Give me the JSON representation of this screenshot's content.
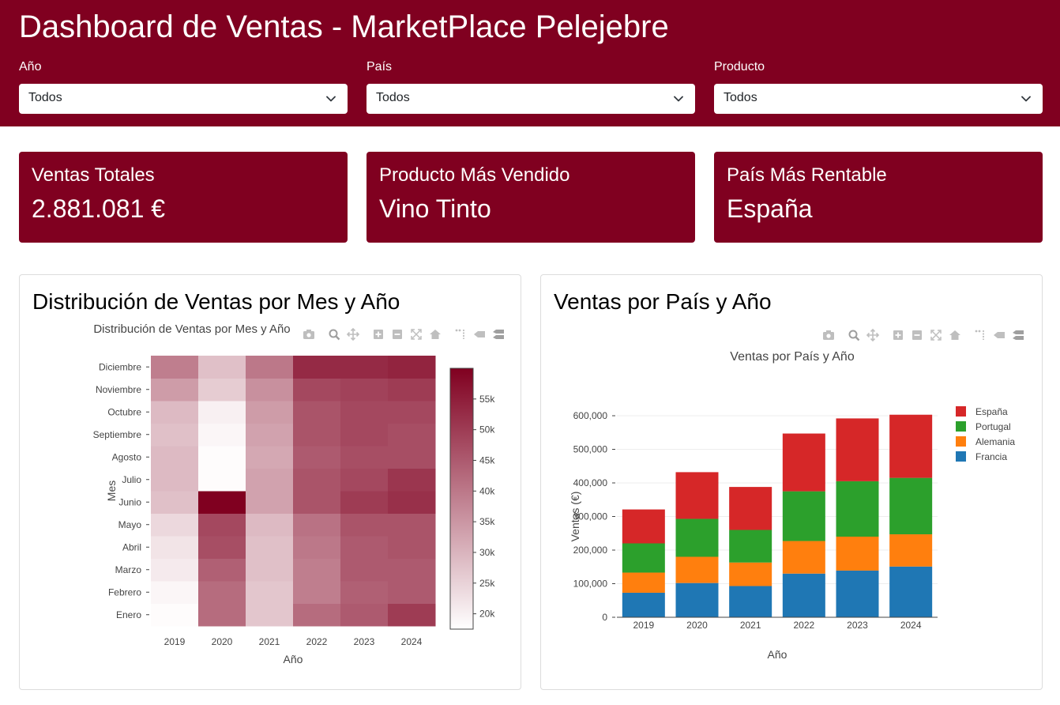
{
  "header": {
    "title": "Dashboard de Ventas - MarketPlace Pelejebre",
    "filters": [
      {
        "label": "Año",
        "value": "Todos"
      },
      {
        "label": "País",
        "value": "Todos"
      },
      {
        "label": "Producto",
        "value": "Todos"
      }
    ]
  },
  "kpis": [
    {
      "title": "Ventas Totales",
      "value": "2.881.081 €"
    },
    {
      "title": "Producto Más Vendido",
      "value": "Vino Tinto"
    },
    {
      "title": "País Más Rentable",
      "value": "España"
    }
  ],
  "panels": [
    {
      "title": "Distribución de Ventas por Mes y Año"
    },
    {
      "title": "Ventas por País y Año"
    }
  ],
  "colors": {
    "brand": "#800020",
    "espana": "#d62728",
    "portugal": "#2ca02c",
    "alemania": "#ff7f0e",
    "francia": "#1f77b4"
  },
  "toolbar_icons": [
    "camera-icon",
    "zoom-icon",
    "pan-icon",
    "zoom-in-icon",
    "zoom-out-icon",
    "autoscale-icon",
    "home-icon",
    "spike-lines-icon",
    "hover-closest-icon",
    "hover-compare-icon"
  ],
  "chart_data": [
    {
      "type": "heatmap",
      "title": "Distribución de Ventas por Mes y Año",
      "xlabel": "Año",
      "ylabel": "Mes",
      "x": [
        "2019",
        "2020",
        "2021",
        "2022",
        "2023",
        "2024"
      ],
      "y": [
        "Enero",
        "Febrero",
        "Marzo",
        "Abril",
        "Mayo",
        "Junio",
        "Julio",
        "Agosto",
        "Septiembre",
        "Octubre",
        "Noviembre",
        "Diciembre"
      ],
      "z": [
        [
          18000,
          42000,
          27000,
          42000,
          45000,
          50000
        ],
        [
          19000,
          42000,
          27000,
          39000,
          44000,
          45000
        ],
        [
          21000,
          44000,
          28000,
          39000,
          45000,
          45000
        ],
        [
          22000,
          47000,
          28000,
          40000,
          45000,
          46000
        ],
        [
          24000,
          48000,
          29000,
          41000,
          46000,
          46000
        ],
        [
          28000,
          60000,
          33000,
          46000,
          50000,
          52000
        ],
        [
          29000,
          18000,
          33000,
          46000,
          48000,
          51000
        ],
        [
          29000,
          18000,
          32000,
          45000,
          47000,
          47000
        ],
        [
          28000,
          19000,
          33000,
          46000,
          48000,
          47000
        ],
        [
          29000,
          20000,
          34000,
          46000,
          48000,
          48000
        ],
        [
          34000,
          26000,
          36000,
          48000,
          49000,
          50000
        ],
        [
          39000,
          28000,
          40000,
          53000,
          53000,
          54000
        ]
      ],
      "colorbar": {
        "ticks": [
          "20k",
          "25k",
          "30k",
          "35k",
          "40k",
          "45k",
          "50k",
          "55k"
        ],
        "tick_values": [
          20000,
          25000,
          30000,
          35000,
          40000,
          45000,
          50000,
          55000
        ],
        "zmin": 17500,
        "zmax": 60000
      }
    },
    {
      "type": "bar",
      "stacked": true,
      "title": "Ventas por País y Año",
      "xlabel": "Año",
      "ylabel": "Ventas (€)",
      "categories": [
        "2019",
        "2020",
        "2021",
        "2022",
        "2023",
        "2024"
      ],
      "series": [
        {
          "name": "Francia",
          "color": "#1f77b4",
          "values": [
            73000,
            102000,
            93000,
            130000,
            139000,
            151000
          ]
        },
        {
          "name": "Alemania",
          "color": "#ff7f0e",
          "values": [
            60000,
            78000,
            70000,
            97000,
            101000,
            96000
          ]
        },
        {
          "name": "Portugal",
          "color": "#2ca02c",
          "values": [
            87000,
            113000,
            97000,
            148000,
            165000,
            168000
          ]
        },
        {
          "name": "España",
          "color": "#d62728",
          "values": [
            101000,
            139000,
            128000,
            172000,
            187000,
            188000
          ]
        }
      ],
      "legend_order": [
        "España",
        "Portugal",
        "Alemania",
        "Francia"
      ],
      "legend_position": "right",
      "yticks": [
        "0",
        "100,000",
        "200,000",
        "300,000",
        "400,000",
        "500,000",
        "600,000"
      ],
      "ylim": [
        0,
        600000
      ],
      "grid": true
    }
  ]
}
